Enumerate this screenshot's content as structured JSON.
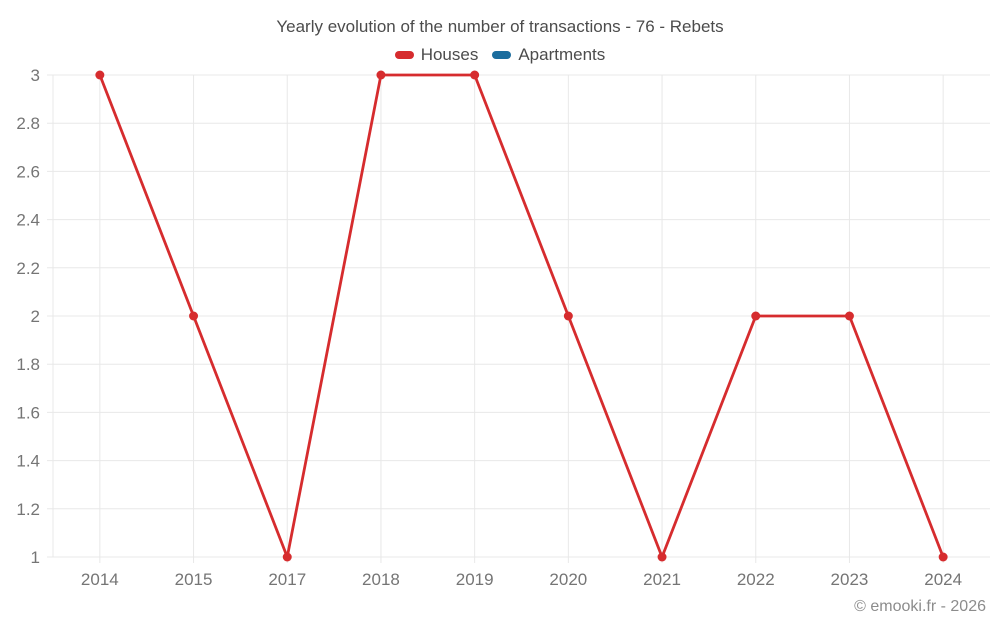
{
  "title": "Yearly evolution of the number of transactions - 76 - Rebets",
  "watermark": "© emooki.fr - 2026",
  "legend": [
    {
      "label": "Houses",
      "color": "#d62c2e"
    },
    {
      "label": "Apartments",
      "color": "#1b6d9e"
    }
  ],
  "colors": {
    "grid": "#e8e8e8",
    "tick_label": "#757575",
    "title": "#4c4c4c",
    "watermark": "#8c8c8c"
  },
  "chart_data": {
    "type": "line",
    "title": "Yearly evolution of the number of transactions - 76 - Rebets",
    "categories": [
      "2014",
      "2015",
      "2017",
      "2018",
      "2019",
      "2020",
      "2021",
      "2022",
      "2023",
      "2024"
    ],
    "series": [
      {
        "name": "Houses",
        "color": "#d62c2e",
        "values": [
          3,
          2,
          1,
          3,
          3,
          2,
          1,
          2,
          2,
          1
        ]
      },
      {
        "name": "Apartments",
        "color": "#1b6d9e",
        "values": []
      }
    ],
    "xlabel": "",
    "ylabel": "",
    "ylim": [
      1,
      3
    ],
    "yticks": [
      1,
      1.2,
      1.4,
      1.6,
      1.8,
      2,
      2.2,
      2.4,
      2.6,
      2.8,
      3
    ],
    "grid": true,
    "legend_position": "top",
    "marker": "circle"
  }
}
